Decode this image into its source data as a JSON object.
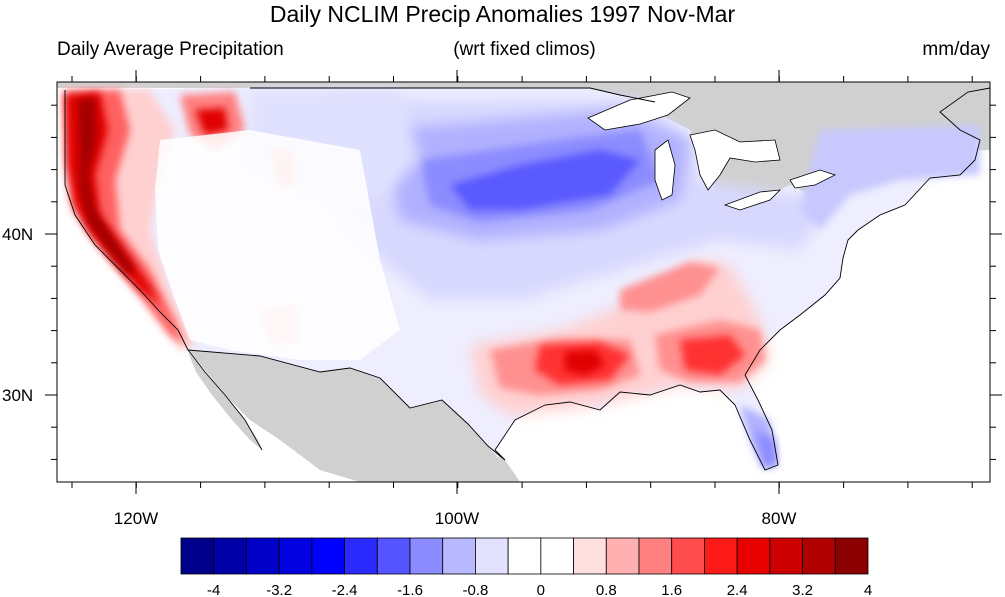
{
  "title": "Daily NCLIM Precip Anomalies 1997 Nov-Mar",
  "subtitle_left": "Daily Average Precipitation",
  "subtitle_center": "(wrt fixed climos)",
  "subtitle_right": "mm/day",
  "lon_labels": [
    "120W",
    "100W",
    "80W"
  ],
  "lat_labels": [
    "40N",
    "30N"
  ],
  "colorbar": {
    "colors": [
      "#00008b",
      "#0000a8",
      "#0000c8",
      "#0000e0",
      "#0000ff",
      "#2a2aff",
      "#5555ff",
      "#8c8cff",
      "#b8b8ff",
      "#e2e2ff",
      "#ffffff",
      "#ffffff",
      "#ffe0e0",
      "#ffb0b0",
      "#ff8080",
      "#ff4d4d",
      "#ff1a1a",
      "#e80000",
      "#cc0000",
      "#b00000",
      "#8b0000"
    ],
    "labels": [
      "-4",
      "-3.2",
      "-2.4",
      "-1.6",
      "-0.8",
      "0",
      "0.8",
      "1.6",
      "2.4",
      "3.2",
      "4"
    ]
  },
  "colors": {
    "land_missing": "#d0d0d0",
    "ocean": "#ffffff"
  }
}
